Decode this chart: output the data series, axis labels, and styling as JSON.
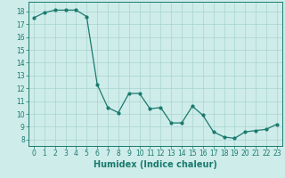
{
  "x": [
    0,
    1,
    2,
    3,
    4,
    5,
    6,
    7,
    8,
    9,
    10,
    11,
    12,
    13,
    14,
    15,
    16,
    17,
    18,
    19,
    20,
    21,
    22,
    23
  ],
  "y": [
    17.5,
    17.9,
    18.1,
    18.1,
    18.1,
    17.6,
    12.3,
    10.5,
    10.1,
    11.6,
    11.6,
    10.4,
    10.5,
    9.3,
    9.3,
    10.6,
    9.9,
    8.6,
    8.2,
    8.1,
    8.6,
    8.7,
    8.8,
    9.2
  ],
  "line_color": "#1a7a6e",
  "marker": "o",
  "markersize": 2,
  "linewidth": 0.9,
  "background_color": "#ceecea",
  "grid_color": "#a8d4d0",
  "xlabel": "Humidex (Indice chaleur)",
  "ylabel": "",
  "title": "",
  "xlim": [
    -0.5,
    23.5
  ],
  "ylim": [
    7.5,
    18.75
  ],
  "yticks": [
    8,
    9,
    10,
    11,
    12,
    13,
    14,
    15,
    16,
    17,
    18
  ],
  "xticks": [
    0,
    1,
    2,
    3,
    4,
    5,
    6,
    7,
    8,
    9,
    10,
    11,
    12,
    13,
    14,
    15,
    16,
    17,
    18,
    19,
    20,
    21,
    22,
    23
  ],
  "tick_label_fontsize": 5.5,
  "xlabel_fontsize": 7.0
}
